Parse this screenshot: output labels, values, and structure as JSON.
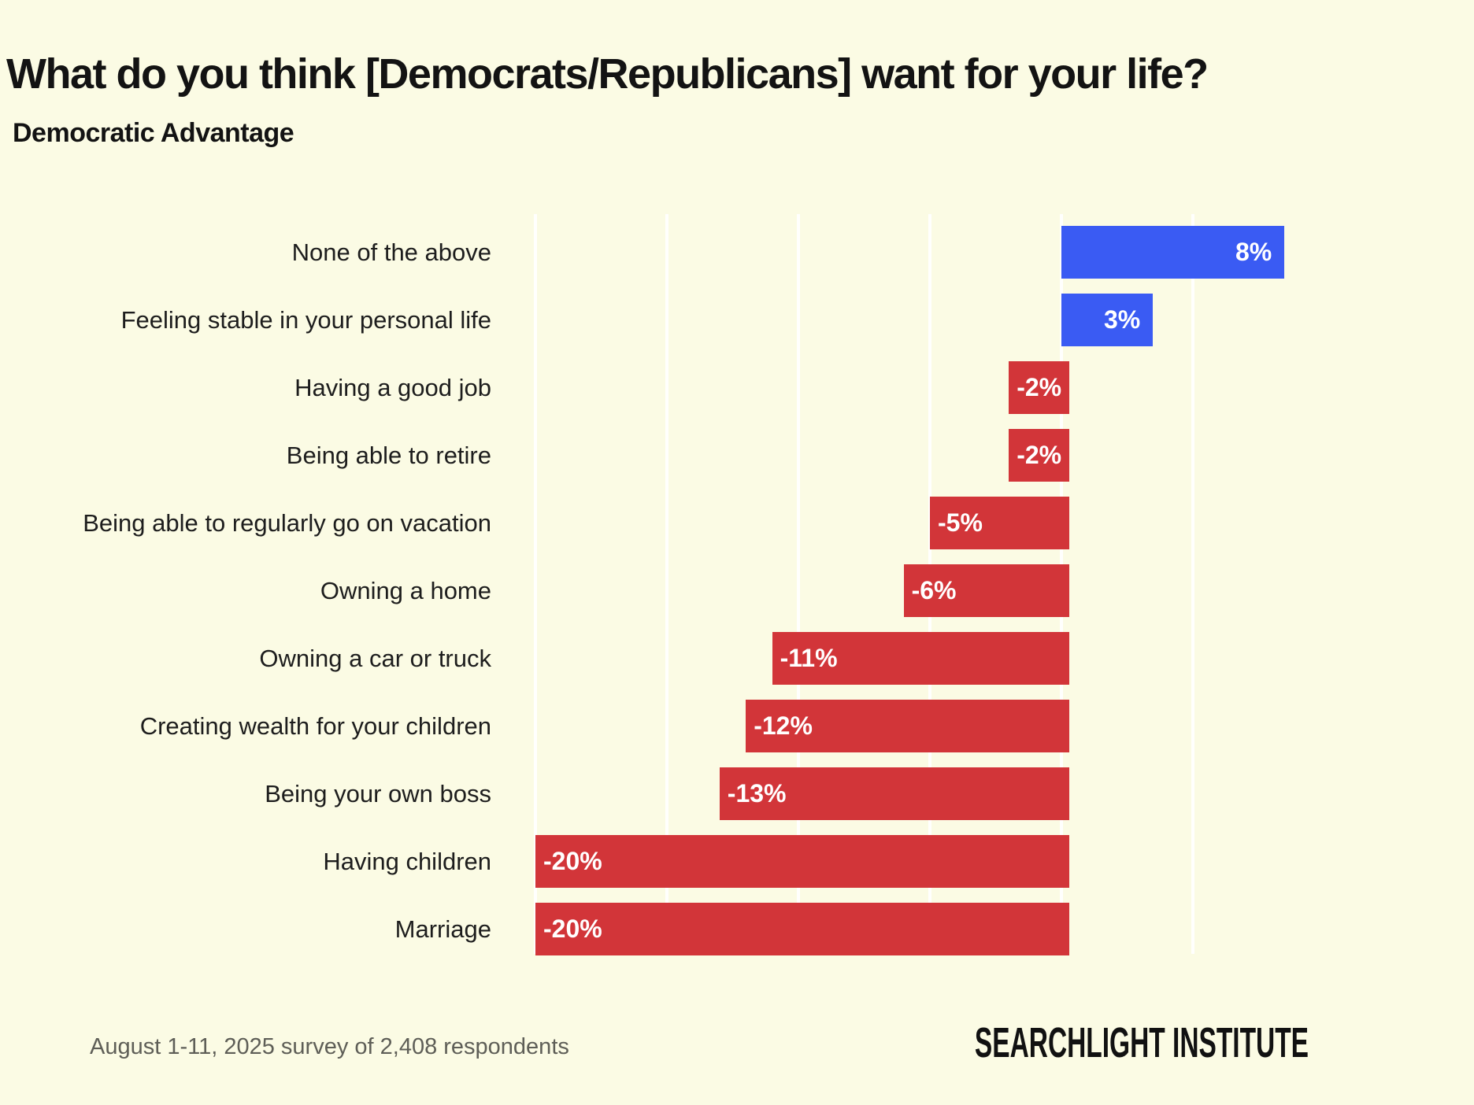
{
  "page": {
    "background_color": "#FBFBE4"
  },
  "header": {
    "title": "What do you think [Democrats/Republicans] want for your life?",
    "subtitle": "Democratic Advantage"
  },
  "chart_data": {
    "type": "bar",
    "orientation": "horizontal",
    "title": "What do you think [Democrats/Republicans] want for your life?",
    "subtitle": "Democratic Advantage",
    "categories": [
      "None of the above",
      "Feeling stable in your personal life",
      "Having a good job",
      "Being able to retire",
      "Being able to regularly go on vacation",
      "Owning a home",
      "Owning a car or truck",
      "Creating wealth for your children",
      "Being your own boss",
      "Having children",
      "Marriage"
    ],
    "values": [
      8,
      3,
      -2,
      -2,
      -5,
      -6,
      -11,
      -12,
      -13,
      -20,
      -20
    ],
    "value_labels": [
      "8%",
      "3%",
      "-2%",
      "-2%",
      "-5%",
      "-6%",
      "-11%",
      "-12%",
      "-13%",
      "-20%",
      "-20%"
    ],
    "positive_color": "#3A5BF3",
    "negative_color": "#D23539",
    "grid_color": "#FFFFFF",
    "gridlines": [
      -20,
      -15,
      -10,
      -5,
      0,
      5
    ],
    "xlim": [
      -20,
      9
    ],
    "legend": "none",
    "grid": "vertical-only",
    "value_label_position": "inside-bar"
  },
  "footer": {
    "note": "August 1-11, 2025 survey of 2,408 respondents",
    "brand": "SEARCHLIGHT INSTITUTE"
  }
}
